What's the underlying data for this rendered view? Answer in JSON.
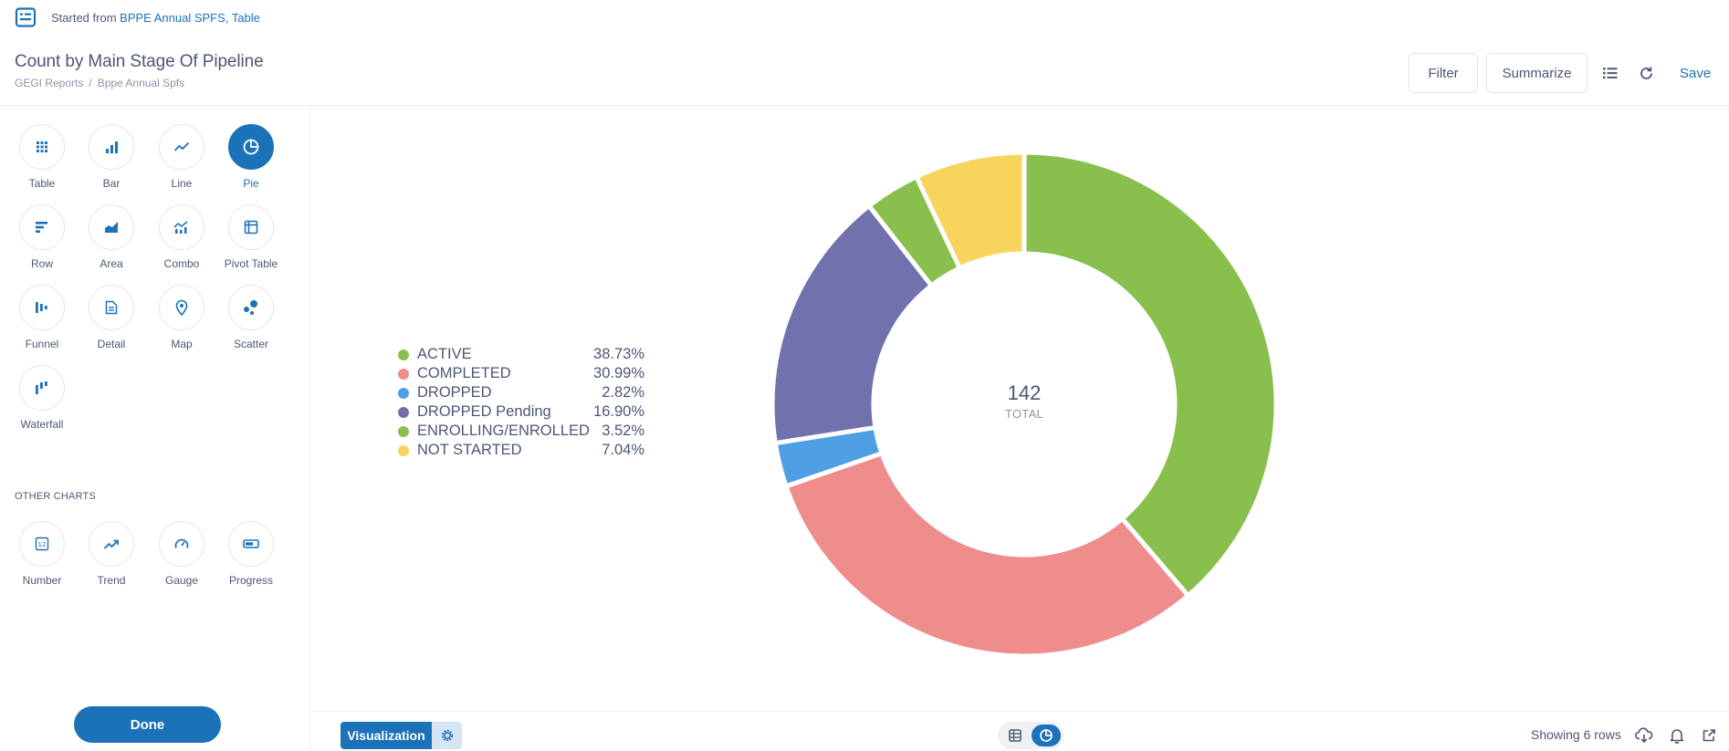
{
  "topbar": {
    "started_prefix": "Started from",
    "started_link": "BPPE Annual SPFS, Table"
  },
  "header": {
    "title": "Count by Main Stage Of Pipeline",
    "breadcrumbs": [
      "GEGI Reports",
      "Bppe Annual Spfs"
    ],
    "breadcrumb_separator": "/",
    "filter_label": "Filter",
    "summarize_label": "Summarize",
    "save_label": "Save"
  },
  "sidebar": {
    "visualizations": [
      {
        "label": "Table",
        "icon": "table-grid-icon",
        "active": false
      },
      {
        "label": "Bar",
        "icon": "bar-chart-icon",
        "active": false
      },
      {
        "label": "Line",
        "icon": "line-chart-icon",
        "active": false
      },
      {
        "label": "Pie",
        "icon": "pie-chart-icon",
        "active": true
      },
      {
        "label": "Row",
        "icon": "row-chart-icon",
        "active": false
      },
      {
        "label": "Area",
        "icon": "area-chart-icon",
        "active": false
      },
      {
        "label": "Combo",
        "icon": "combo-chart-icon",
        "active": false
      },
      {
        "label": "Pivot Table",
        "icon": "pivot-table-icon",
        "active": false
      },
      {
        "label": "Funnel",
        "icon": "funnel-icon",
        "active": false
      },
      {
        "label": "Detail",
        "icon": "detail-icon",
        "active": false
      },
      {
        "label": "Map",
        "icon": "map-pin-icon",
        "active": false
      },
      {
        "label": "Scatter",
        "icon": "scatter-icon",
        "active": false
      },
      {
        "label": "Waterfall",
        "icon": "waterfall-icon",
        "active": false
      }
    ],
    "other_charts_heading": "OTHER CHARTS",
    "other_charts": [
      {
        "label": "Number",
        "icon": "number-icon"
      },
      {
        "label": "Trend",
        "icon": "trend-icon"
      },
      {
        "label": "Gauge",
        "icon": "gauge-icon"
      },
      {
        "label": "Progress",
        "icon": "progress-icon"
      }
    ],
    "done_label": "Done"
  },
  "chart_data": {
    "type": "pie",
    "donut": true,
    "total": "142",
    "total_label": "TOTAL",
    "slices": [
      {
        "label": "ACTIVE",
        "percent_text": "38.73%",
        "value": 55,
        "color": "#88bf4d"
      },
      {
        "label": "COMPLETED",
        "percent_text": "30.99%",
        "value": 44,
        "color": "#ef8c8c"
      },
      {
        "label": "DROPPED",
        "percent_text": "2.82%",
        "value": 4,
        "color": "#509ee3"
      },
      {
        "label": "DROPPED Pending",
        "percent_text": "16.90%",
        "value": 24,
        "color": "#7172ad"
      },
      {
        "label": "ENROLLING/ENROLLED",
        "percent_text": "3.52%",
        "value": 5,
        "color": "#88bf4d"
      },
      {
        "label": "NOT STARTED",
        "percent_text": "7.04%",
        "value": 10,
        "color": "#f9d45c"
      }
    ],
    "legend_position": "left"
  },
  "footer": {
    "visualization_label": "Visualization",
    "row_count": "Showing 6 rows"
  },
  "colors": {
    "brand": "#1c72b8",
    "text": "#4c5773",
    "muted": "#8a94a6"
  }
}
